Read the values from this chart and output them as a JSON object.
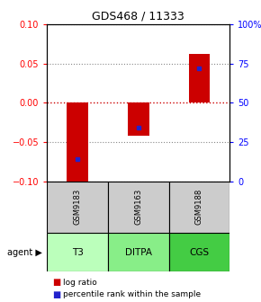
{
  "title": "GDS468 / 11333",
  "samples": [
    "GSM9183",
    "GSM9163",
    "GSM9188"
  ],
  "agents": [
    "T3",
    "DITPA",
    "CGS"
  ],
  "log_ratios": [
    -0.102,
    -0.042,
    0.062
  ],
  "percentile_ranks": [
    14,
    34,
    72
  ],
  "left_ylim": [
    -0.1,
    0.1
  ],
  "right_ylim": [
    0,
    100
  ],
  "left_yticks": [
    -0.1,
    -0.05,
    0,
    0.05,
    0.1
  ],
  "right_yticks": [
    0,
    25,
    50,
    75,
    100
  ],
  "right_yticklabels": [
    "0",
    "25",
    "50",
    "75",
    "100%"
  ],
  "bar_color": "#cc0000",
  "percentile_color": "#2222cc",
  "agent_colors": [
    "#bbffbb",
    "#88ee88",
    "#44cc44"
  ],
  "sample_box_color": "#cccccc",
  "hline_color": "#cc0000",
  "grid_color": "#888888",
  "bar_width": 0.35
}
